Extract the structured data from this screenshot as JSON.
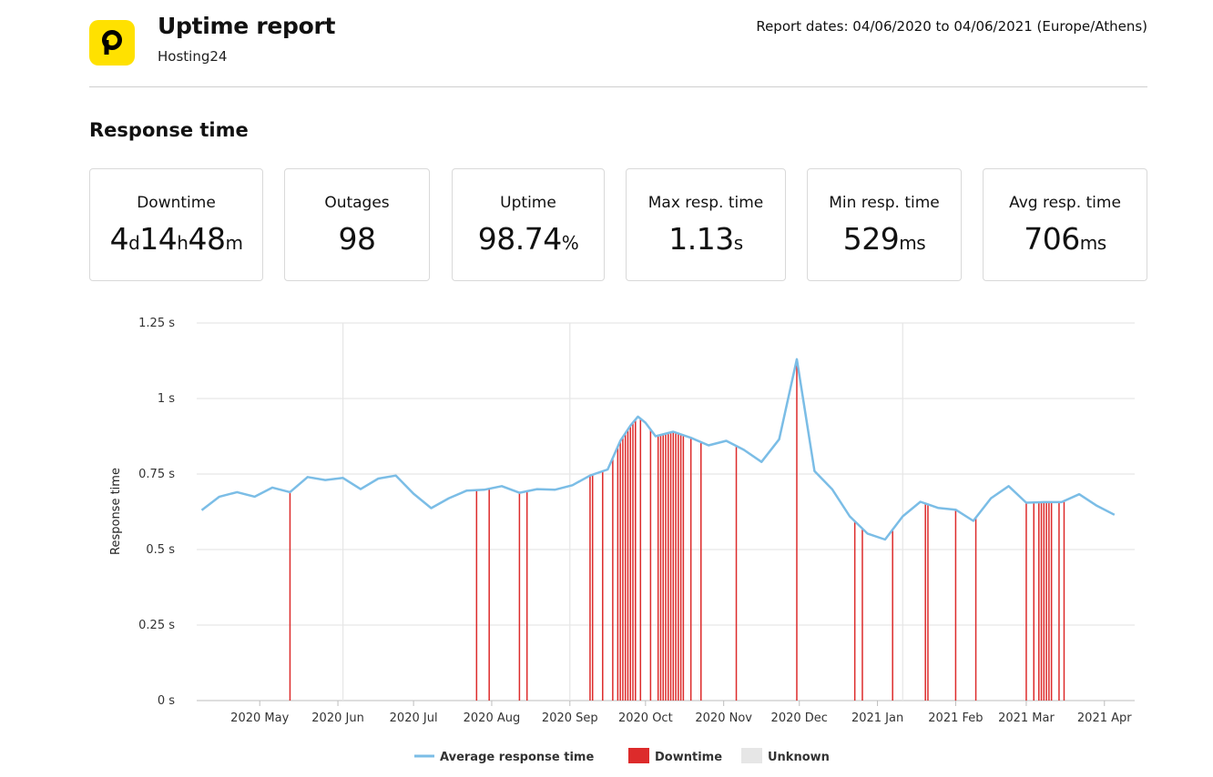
{
  "header": {
    "title": "Uptime report",
    "subtitle": "Hosting24",
    "report_dates": "Report dates: 04/06/2020 to 04/06/2021 (Europe/Athens)",
    "logo_letter": "P",
    "brand_color": "#ffe100"
  },
  "section_title": "Response time",
  "stats": [
    {
      "label": "Downtime",
      "parts": [
        {
          "t": "4",
          "u": false
        },
        {
          "t": "d",
          "u": true
        },
        {
          "t": "14",
          "u": false
        },
        {
          "t": "h",
          "u": true
        },
        {
          "t": "48",
          "u": false
        },
        {
          "t": "m",
          "u": true
        }
      ]
    },
    {
      "label": "Outages",
      "parts": [
        {
          "t": "98",
          "u": false
        }
      ]
    },
    {
      "label": "Uptime",
      "parts": [
        {
          "t": "98.74",
          "u": false
        },
        {
          "t": "%",
          "u": true
        }
      ]
    },
    {
      "label": "Max resp. time",
      "parts": [
        {
          "t": "1.13",
          "u": false
        },
        {
          "t": "s",
          "u": true
        }
      ]
    },
    {
      "label": "Min resp. time",
      "parts": [
        {
          "t": "529",
          "u": false
        },
        {
          "t": "ms",
          "u": true
        }
      ]
    },
    {
      "label": "Avg resp. time",
      "parts": [
        {
          "t": "706",
          "u": false
        },
        {
          "t": "ms",
          "u": true
        }
      ]
    }
  ],
  "chart_data": {
    "type": "line",
    "ylabel": "Response time",
    "ylim": [
      0,
      1.25
    ],
    "yticks": [
      {
        "v": 0,
        "label": "0 s"
      },
      {
        "v": 0.25,
        "label": "0.25 s"
      },
      {
        "v": 0.5,
        "label": "0.5 s"
      },
      {
        "v": 0.75,
        "label": "0.75 s"
      },
      {
        "v": 1,
        "label": "1 s"
      },
      {
        "v": 1.25,
        "label": "1.25 s"
      }
    ],
    "xlim": [
      "2020-04-06",
      "2021-04-13"
    ],
    "xticks": [
      {
        "date": "2020-05-01",
        "label": "2020 May"
      },
      {
        "date": "2020-06-01",
        "label": "2020 Jun"
      },
      {
        "date": "2020-07-01",
        "label": "2020 Jul"
      },
      {
        "date": "2020-08-01",
        "label": "2020 Aug"
      },
      {
        "date": "2020-09-01",
        "label": "2020 Sep"
      },
      {
        "date": "2020-10-01",
        "label": "2020 Oct"
      },
      {
        "date": "2020-11-01",
        "label": "2020 Nov"
      },
      {
        "date": "2020-12-01",
        "label": "2020 Dec"
      },
      {
        "date": "2021-01-01",
        "label": "2021 Jan"
      },
      {
        "date": "2021-02-01",
        "label": "2021 Feb"
      },
      {
        "date": "2021-03-01",
        "label": "2021 Mar"
      },
      {
        "date": "2021-04-01",
        "label": "2021 Apr"
      }
    ],
    "grid": true,
    "legend_position": "bottom",
    "series": [
      {
        "name": "Average response time",
        "color": "#7bbde6",
        "points": [
          [
            "2020-04-08",
            0.63
          ],
          [
            "2020-04-15",
            0.675
          ],
          [
            "2020-04-22",
            0.69
          ],
          [
            "2020-04-29",
            0.675
          ],
          [
            "2020-05-06",
            0.705
          ],
          [
            "2020-05-13",
            0.69
          ],
          [
            "2020-05-20",
            0.74
          ],
          [
            "2020-05-27",
            0.73
          ],
          [
            "2020-06-03",
            0.737
          ],
          [
            "2020-06-10",
            0.7
          ],
          [
            "2020-06-17",
            0.735
          ],
          [
            "2020-06-24",
            0.745
          ],
          [
            "2020-07-01",
            0.685
          ],
          [
            "2020-07-08",
            0.637
          ],
          [
            "2020-07-15",
            0.67
          ],
          [
            "2020-07-22",
            0.695
          ],
          [
            "2020-07-29",
            0.698
          ],
          [
            "2020-08-05",
            0.71
          ],
          [
            "2020-08-12",
            0.688
          ],
          [
            "2020-08-19",
            0.7
          ],
          [
            "2020-08-26",
            0.698
          ],
          [
            "2020-09-02",
            0.713
          ],
          [
            "2020-09-09",
            0.745
          ],
          [
            "2020-09-16",
            0.765
          ],
          [
            "2020-09-21",
            0.86
          ],
          [
            "2020-09-25",
            0.91
          ],
          [
            "2020-09-28",
            0.94
          ],
          [
            "2020-10-01",
            0.92
          ],
          [
            "2020-10-05",
            0.875
          ],
          [
            "2020-10-12",
            0.89
          ],
          [
            "2020-10-19",
            0.87
          ],
          [
            "2020-10-26",
            0.845
          ],
          [
            "2020-11-02",
            0.86
          ],
          [
            "2020-11-09",
            0.83
          ],
          [
            "2020-11-16",
            0.79
          ],
          [
            "2020-11-23",
            0.865
          ],
          [
            "2020-11-30",
            1.13
          ],
          [
            "2020-12-07",
            0.76
          ],
          [
            "2020-12-14",
            0.7
          ],
          [
            "2020-12-21",
            0.61
          ],
          [
            "2020-12-28",
            0.553
          ],
          [
            "2021-01-04",
            0.533
          ],
          [
            "2021-01-11",
            0.61
          ],
          [
            "2021-01-18",
            0.658
          ],
          [
            "2021-01-25",
            0.638
          ],
          [
            "2021-02-01",
            0.632
          ],
          [
            "2021-02-08",
            0.595
          ],
          [
            "2021-02-15",
            0.67
          ],
          [
            "2021-02-22",
            0.71
          ],
          [
            "2021-03-01",
            0.655
          ],
          [
            "2021-03-08",
            0.657
          ],
          [
            "2021-03-15",
            0.657
          ],
          [
            "2021-03-22",
            0.683
          ],
          [
            "2021-03-29",
            0.645
          ],
          [
            "2021-04-05",
            0.615
          ]
        ]
      }
    ],
    "downtime": {
      "name": "Downtime",
      "color": "#dd2b2b",
      "events": [
        "2020-05-13",
        "2020-07-26",
        "2020-07-31",
        "2020-08-12",
        "2020-08-15",
        "2020-09-09",
        "2020-09-10",
        "2020-09-14",
        "2020-09-18",
        "2020-09-20",
        "2020-09-21",
        "2020-09-22",
        "2020-09-23",
        "2020-09-24",
        "2020-09-25",
        "2020-09-26",
        "2020-09-27",
        "2020-09-29",
        "2020-10-03",
        "2020-10-06",
        "2020-10-07",
        "2020-10-08",
        "2020-10-09",
        "2020-10-10",
        "2020-10-11",
        "2020-10-12",
        "2020-10-13",
        "2020-10-14",
        "2020-10-15",
        "2020-10-16",
        "2020-10-19",
        "2020-10-23",
        "2020-11-06",
        "2020-11-30",
        "2020-12-23",
        "2020-12-26",
        "2021-01-07",
        "2021-01-20",
        "2021-01-21",
        "2021-02-01",
        "2021-02-09",
        "2021-03-01",
        "2021-03-04",
        "2021-03-06",
        "2021-03-07",
        "2021-03-08",
        "2021-03-09",
        "2021-03-10",
        "2021-03-11",
        "2021-03-14",
        "2021-03-16"
      ]
    },
    "unknown": {
      "name": "Unknown",
      "color": "#e6e6e6",
      "events": [
        "2020-06-03",
        "2020-09-01",
        "2021-01-11"
      ]
    }
  }
}
